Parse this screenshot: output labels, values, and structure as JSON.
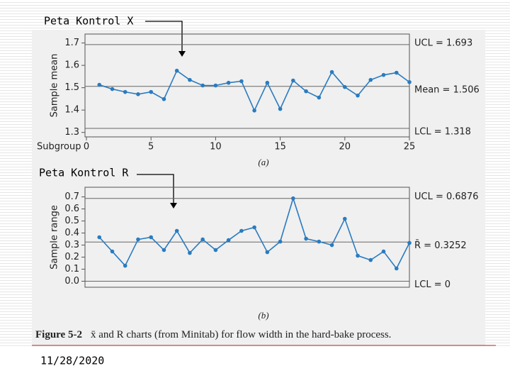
{
  "slide": {
    "date": "11/28/2020"
  },
  "caption": {
    "label": "Figure 5-2",
    "text": "x̄ and R charts (from Minitab) for flow width in the hard-bake process."
  },
  "chart_data": [
    {
      "type": "line",
      "title": "Peta Kontrol X",
      "panel_label": "(a)",
      "ylabel": "Sample mean",
      "xlabel": "Subgroup",
      "color": "#2a7bc0",
      "x": [
        1,
        2,
        3,
        4,
        5,
        6,
        7,
        8,
        9,
        10,
        11,
        12,
        13,
        14,
        15,
        16,
        17,
        18,
        19,
        20,
        21,
        22,
        23,
        24,
        25
      ],
      "values": [
        1.513,
        1.494,
        1.481,
        1.471,
        1.481,
        1.449,
        1.576,
        1.535,
        1.51,
        1.51,
        1.522,
        1.529,
        1.398,
        1.522,
        1.405,
        1.532,
        1.484,
        1.456,
        1.57,
        1.503,
        1.465,
        1.535,
        1.557,
        1.567,
        1.525
      ],
      "xlim": [
        0,
        25
      ],
      "xticks": [
        0,
        5,
        10,
        15,
        20,
        25
      ],
      "ylim": [
        1.28,
        1.74
      ],
      "yticks": [
        {
          "value": 1.3,
          "label": "1.3"
        },
        {
          "value": 1.4,
          "label": "1.4"
        },
        {
          "value": 1.5,
          "label": "1.5"
        },
        {
          "value": 1.6,
          "label": "1.6"
        },
        {
          "value": 1.7,
          "label": "1.7"
        }
      ],
      "limits": [
        {
          "label": "UCL = 1.693",
          "value": 1.693
        },
        {
          "label": "Mean = 1.506",
          "value": 1.506
        },
        {
          "label": "LCL = 1.318",
          "value": 1.318
        }
      ]
    },
    {
      "type": "line",
      "title": "Peta Kontrol R",
      "panel_label": "(b)",
      "ylabel": "Sample range",
      "color": "#2a7bc0",
      "x": [
        1,
        2,
        3,
        4,
        5,
        6,
        7,
        8,
        9,
        10,
        11,
        12,
        13,
        14,
        15,
        16,
        17,
        18,
        19,
        20,
        21,
        22,
        23,
        24,
        25
      ],
      "values": [
        0.365,
        0.247,
        0.129,
        0.347,
        0.365,
        0.259,
        0.418,
        0.235,
        0.347,
        0.259,
        0.341,
        0.418,
        0.447,
        0.241,
        0.329,
        0.688,
        0.353,
        0.329,
        0.3,
        0.518,
        0.212,
        0.176,
        0.247,
        0.106,
        0.318
      ],
      "xlim": [
        0,
        25
      ],
      "ylim": [
        -0.05,
        0.78
      ],
      "yticks": [
        {
          "value": 0,
          "label": "0.0"
        },
        0.1,
        0.2,
        0.3,
        0.4,
        0.5,
        0.6,
        0.7
      ],
      "limits": [
        {
          "label": "UCL = 0.6876",
          "value": 0.6876
        },
        {
          "label": "R̄ = 0.3252",
          "value": 0.3252
        },
        {
          "label": "LCL = 0",
          "value": 0
        }
      ]
    }
  ]
}
